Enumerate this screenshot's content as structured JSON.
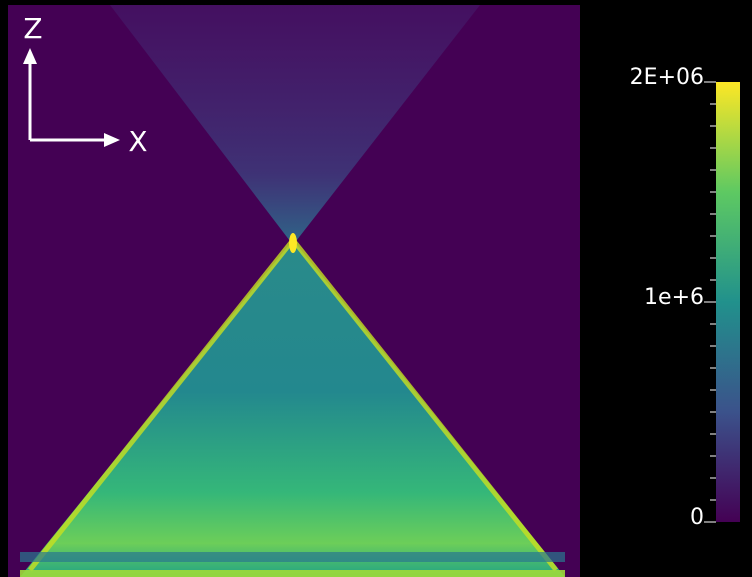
{
  "chart_data": {
    "type": "heatmap",
    "axes_labels": {
      "horizontal": "X",
      "vertical": "Z"
    },
    "colormap": [
      "#440154",
      "#3b528b",
      "#21918c",
      "#5ec962",
      "#fde725"
    ],
    "colorbar": {
      "lim": [
        0,
        2000000
      ],
      "ticks": [
        0,
        {
          "value": 1000000,
          "label": "1e+6"
        },
        {
          "value": 2000000,
          "label": "2E+06"
        }
      ]
    }
  }
}
